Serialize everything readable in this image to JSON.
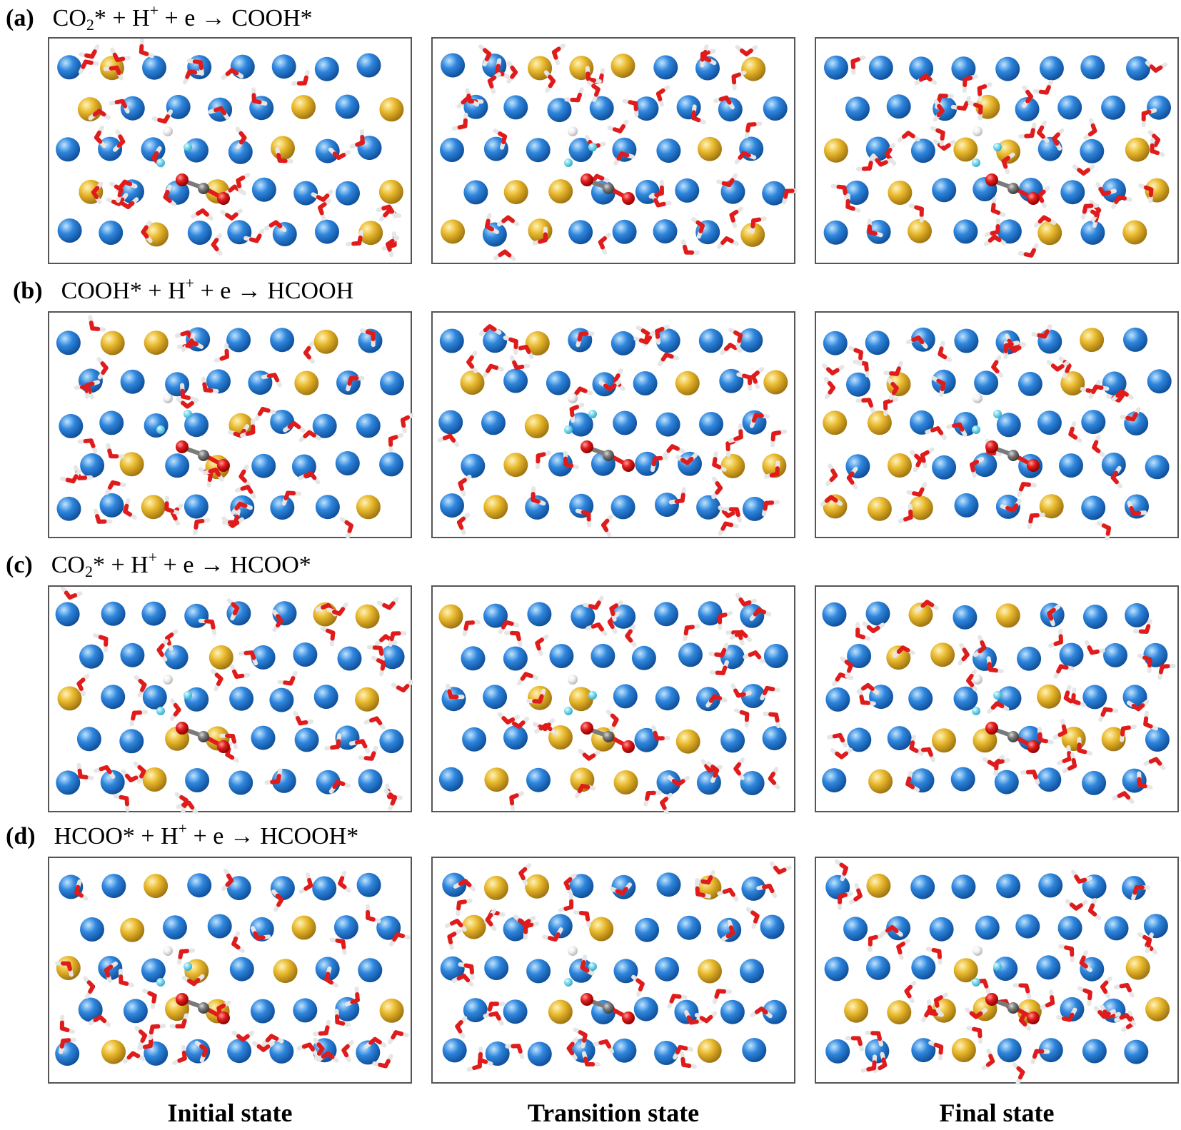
{
  "rows": [
    {
      "tag": "(a)",
      "reaction": {
        "a": "CO",
        "sub": "2",
        "b": "* + H",
        "sup": "+",
        "c": " + e → COOH*"
      }
    },
    {
      "tag": "(b)",
      "reaction": {
        "a": "COOH* + H",
        "sub": "",
        "b": "",
        "sup": "+",
        "c": " + e → HCOOH"
      }
    },
    {
      "tag": "(c)",
      "reaction": {
        "a": "CO",
        "sub": "2",
        "b": "* + H",
        "sup": "+",
        "c": " + e → HCOO*"
      }
    },
    {
      "tag": "(d)",
      "reaction": {
        "a": "HCOO* + H",
        "sub": "",
        "b": "",
        "sup": "+",
        "c": " + e → HCOOH*"
      }
    }
  ],
  "columns": [
    "Initial state",
    "Transition state",
    "Final state"
  ],
  "colors": {
    "metal_blue": "#2f86dd",
    "metal_gold": "#e8b82c",
    "oxygen": "#e01b1b",
    "hydrogen": "#f2f2f2",
    "carbon": "#7a7a7a",
    "proton": "#7fdcef",
    "frame": "#555555"
  }
}
